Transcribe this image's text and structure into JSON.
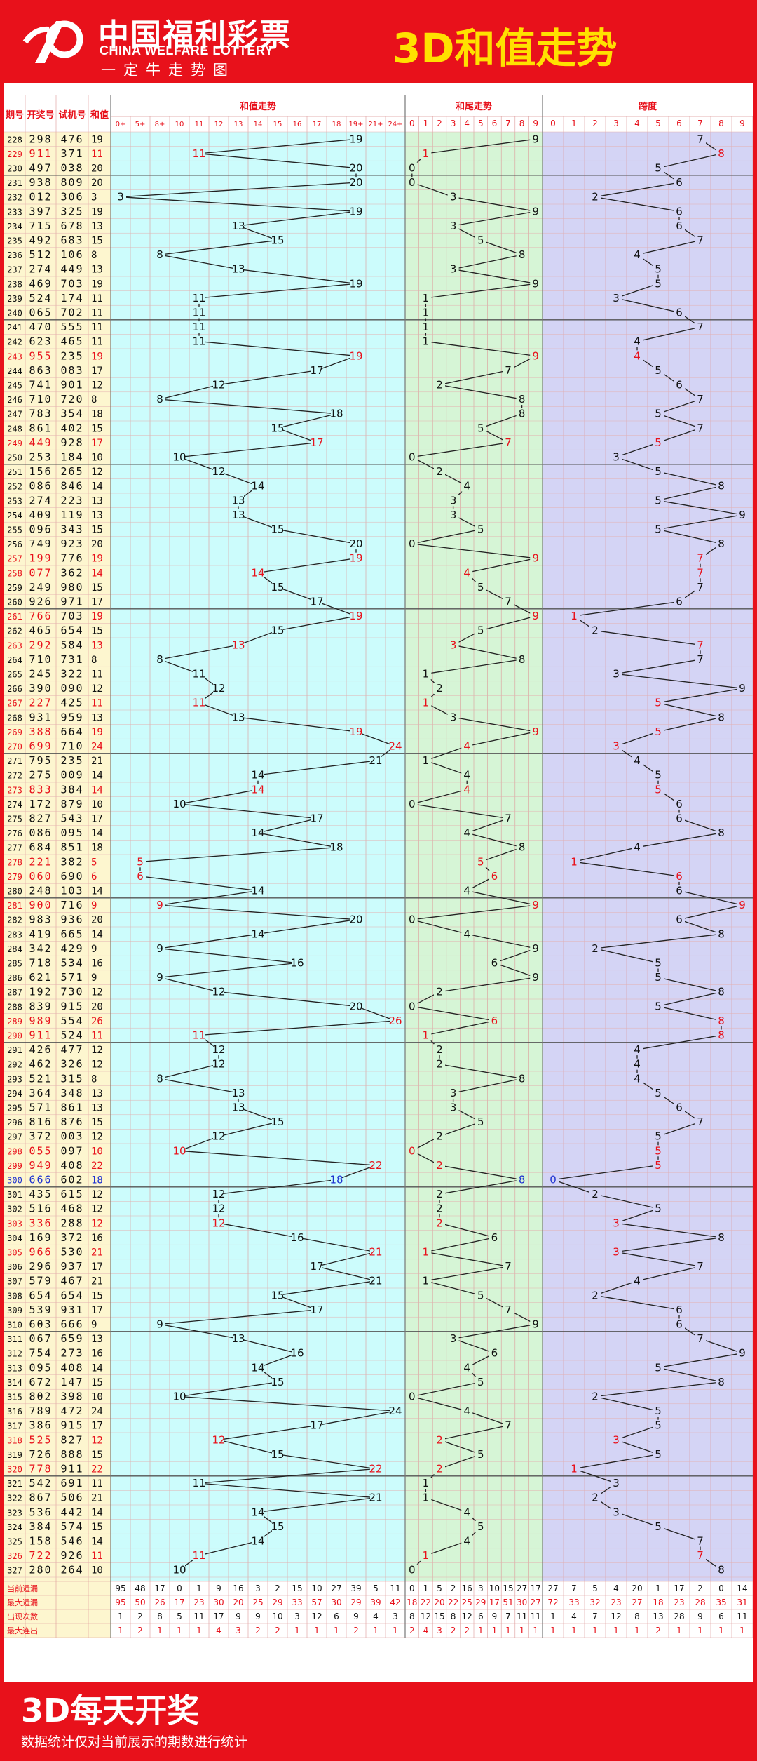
{
  "header": {
    "logo_cn": "中国福利彩票",
    "logo_en": "CHINA WELFARE LOTTERY",
    "logo_sub": "一定牛走势图",
    "title": "3D和值走势"
  },
  "footer": {
    "title": "3D每天开奖",
    "note": "数据统计仅对当前展示的期数进行统计"
  },
  "colors": {
    "red": "#e8111b",
    "yellow": "#ffe100",
    "cyan_bg": "#ccfcfc",
    "green_bg": "#d6f5d6",
    "lavender_bg": "#d4d4f5",
    "sidebar_bg": "#fdf6cf",
    "highlight_blue": "#1e32d0"
  },
  "chart_data": {
    "type": "table",
    "sections": [
      {
        "name": "和值走势",
        "columns": [
          "0+",
          "5+",
          "8+",
          "10",
          "11",
          "12",
          "13",
          "14",
          "15",
          "16",
          "17",
          "18",
          "19+",
          "21+",
          "24+"
        ]
      },
      {
        "name": "和尾走势",
        "columns": [
          "0",
          "1",
          "2",
          "3",
          "4",
          "5",
          "6",
          "7",
          "8",
          "9"
        ]
      },
      {
        "name": "跨度",
        "columns": [
          "0",
          "1",
          "2",
          "3",
          "4",
          "5",
          "6",
          "7",
          "8",
          "9"
        ]
      }
    ],
    "left_headers": [
      "期号",
      "开奖号",
      "试机号",
      "和值"
    ],
    "periods": [
      "228",
      "229",
      "230",
      "231",
      "232",
      "233",
      "234",
      "235",
      "236",
      "237",
      "238",
      "239",
      "240",
      "241",
      "242",
      "243",
      "244",
      "245",
      "246",
      "247",
      "248",
      "249",
      "250",
      "251",
      "252",
      "253",
      "254",
      "255",
      "256",
      "257",
      "258",
      "259",
      "260",
      "261",
      "262",
      "263",
      "264",
      "265",
      "266",
      "267",
      "268",
      "269",
      "270",
      "271",
      "272",
      "273",
      "274",
      "275",
      "276",
      "277",
      "278",
      "279",
      "280",
      "281",
      "282",
      "283",
      "284",
      "285",
      "286",
      "287",
      "288",
      "289",
      "290",
      "291",
      "292",
      "293",
      "294",
      "295",
      "296",
      "297",
      "298",
      "299",
      "300",
      "301",
      "302",
      "303",
      "304",
      "305",
      "306",
      "307",
      "308",
      "309",
      "310",
      "311",
      "312",
      "313",
      "314",
      "315",
      "316",
      "317",
      "318",
      "319",
      "320",
      "321",
      "322",
      "323",
      "324",
      "325",
      "326",
      "327"
    ],
    "draws": [
      "298",
      "911",
      "497",
      "938",
      "012",
      "397",
      "715",
      "492",
      "512",
      "274",
      "469",
      "524",
      "065",
      "470",
      "623",
      "955",
      "863",
      "741",
      "710",
      "783",
      "861",
      "449",
      "253",
      "156",
      "086",
      "274",
      "409",
      "096",
      "749",
      "199",
      "077",
      "249",
      "926",
      "766",
      "465",
      "292",
      "710",
      "245",
      "390",
      "227",
      "931",
      "388",
      "699",
      "795",
      "275",
      "833",
      "172",
      "827",
      "086",
      "684",
      "221",
      "060",
      "248",
      "900",
      "983",
      "419",
      "342",
      "718",
      "621",
      "192",
      "839",
      "989",
      "911",
      "426",
      "462",
      "521",
      "364",
      "571",
      "816",
      "372",
      "055",
      "949",
      "666",
      "435",
      "516",
      "336",
      "169",
      "966",
      "296",
      "579",
      "654",
      "539",
      "603",
      "067",
      "754",
      "095",
      "672",
      "802",
      "789",
      "386",
      "525",
      "726",
      "778",
      "542",
      "867",
      "536",
      "384",
      "158",
      "722",
      "280"
    ],
    "trials": [
      "476",
      "371",
      "038",
      "809",
      "306",
      "325",
      "678",
      "683",
      "106",
      "449",
      "703",
      "174",
      "702",
      "555",
      "465",
      "235",
      "083",
      "901",
      "720",
      "354",
      "402",
      "928",
      "184",
      "265",
      "846",
      "223",
      "119",
      "343",
      "923",
      "776",
      "362",
      "980",
      "971",
      "703",
      "654",
      "584",
      "731",
      "322",
      "090",
      "425",
      "959",
      "664",
      "710",
      "235",
      "009",
      "384",
      "879",
      "543",
      "095",
      "851",
      "382",
      "690",
      "103",
      "716",
      "936",
      "665",
      "429",
      "534",
      "571",
      "730",
      "915",
      "554",
      "524",
      "477",
      "326",
      "315",
      "348",
      "861",
      "876",
      "003",
      "097",
      "408",
      "602",
      "615",
      "468",
      "288",
      "372",
      "530",
      "937",
      "467",
      "654",
      "931",
      "666",
      "659",
      "273",
      "408",
      "147",
      "398",
      "472",
      "915",
      "827",
      "888",
      "911",
      "691",
      "506",
      "442",
      "574",
      "546",
      "926",
      "264"
    ],
    "sums": [
      19,
      11,
      20,
      20,
      3,
      19,
      13,
      15,
      8,
      13,
      19,
      11,
      11,
      11,
      11,
      19,
      17,
      12,
      8,
      18,
      15,
      17,
      10,
      12,
      14,
      13,
      13,
      15,
      20,
      19,
      14,
      15,
      17,
      19,
      15,
      13,
      8,
      11,
      12,
      11,
      13,
      19,
      24,
      21,
      14,
      14,
      10,
      17,
      14,
      18,
      5,
      6,
      14,
      9,
      20,
      14,
      9,
      16,
      9,
      12,
      20,
      26,
      11,
      12,
      12,
      8,
      13,
      13,
      15,
      12,
      10,
      22,
      18,
      12,
      12,
      12,
      16,
      21,
      17,
      21,
      15,
      17,
      9,
      13,
      16,
      14,
      15,
      10,
      24,
      17,
      12,
      15,
      22,
      11,
      21,
      14,
      15,
      14,
      11,
      10
    ],
    "tails": [
      9,
      1,
      0,
      0,
      3,
      9,
      3,
      5,
      8,
      3,
      9,
      1,
      1,
      1,
      1,
      9,
      7,
      2,
      8,
      8,
      5,
      7,
      0,
      2,
      4,
      3,
      3,
      5,
      0,
      9,
      4,
      5,
      7,
      9,
      5,
      3,
      8,
      1,
      2,
      1,
      3,
      9,
      4,
      1,
      4,
      4,
      0,
      7,
      4,
      8,
      5,
      6,
      4,
      9,
      0,
      4,
      9,
      6,
      9,
      2,
      0,
      6,
      1,
      2,
      2,
      8,
      3,
      3,
      5,
      2,
      0,
      2,
      8,
      2,
      2,
      2,
      6,
      1,
      7,
      1,
      5,
      7,
      9,
      3,
      6,
      4,
      5,
      0,
      4,
      7,
      2,
      5,
      2,
      1,
      1,
      4,
      5,
      4,
      1,
      0
    ],
    "spans": [
      7,
      8,
      5,
      6,
      2,
      6,
      6,
      7,
      4,
      5,
      5,
      3,
      6,
      7,
      4,
      4,
      5,
      6,
      7,
      5,
      7,
      5,
      3,
      5,
      8,
      5,
      9,
      5,
      8,
      7,
      7,
      7,
      6,
      1,
      2,
      7,
      7,
      3,
      9,
      5,
      8,
      5,
      3,
      4,
      5,
      5,
      6,
      6,
      8,
      4,
      1,
      6,
      6,
      9,
      6,
      8,
      2,
      5,
      5,
      8,
      5,
      8,
      8,
      4,
      4,
      4,
      5,
      6,
      7,
      5,
      5,
      5,
      0,
      2,
      5,
      3,
      8,
      3,
      7,
      4,
      2,
      6,
      6,
      7,
      9,
      5,
      8,
      2,
      5,
      5,
      3,
      5,
      1,
      3,
      2,
      3,
      5,
      7,
      7,
      8
    ],
    "red_rows": [
      "229",
      "243",
      "249",
      "257",
      "258",
      "261",
      "263",
      "267",
      "269",
      "270",
      "273",
      "278",
      "279",
      "281",
      "289",
      "290",
      "298",
      "299",
      "303",
      "305",
      "318",
      "320",
      "326"
    ],
    "blue_rows": [
      "300"
    ],
    "stats": {
      "labels": [
        "当前遗漏",
        "最大遗漏",
        "出现次数",
        "最大连出"
      ],
      "rows": [
        [
          [
            95,
            48,
            17,
            0,
            1,
            9,
            16,
            3,
            2,
            15,
            10,
            27,
            39,
            5,
            11
          ],
          [
            0,
            1,
            5,
            2,
            16,
            3,
            10,
            15,
            27,
            17
          ],
          [
            27,
            7,
            5,
            4,
            20,
            1,
            17,
            2,
            0,
            14
          ]
        ],
        [
          [
            95,
            50,
            26,
            17,
            23,
            30,
            20,
            25,
            29,
            33,
            57,
            30,
            29,
            39,
            42
          ],
          [
            18,
            22,
            20,
            22,
            25,
            29,
            17,
            51,
            30,
            27
          ],
          [
            72,
            33,
            32,
            23,
            27,
            18,
            23,
            28,
            35,
            31
          ]
        ],
        [
          [
            1,
            2,
            8,
            5,
            11,
            17,
            9,
            9,
            10,
            3,
            12,
            6,
            9,
            4,
            3
          ],
          [
            8,
            12,
            15,
            8,
            12,
            6,
            9,
            7,
            11,
            11
          ],
          [
            1,
            4,
            7,
            12,
            8,
            13,
            28,
            9,
            6,
            11
          ]
        ],
        [
          [
            1,
            2,
            1,
            1,
            1,
            4,
            3,
            2,
            2,
            1,
            1,
            1,
            2,
            1,
            1
          ],
          [
            2,
            4,
            3,
            2,
            2,
            1,
            1,
            1,
            1,
            1
          ],
          [
            1,
            1,
            1,
            1,
            1,
            2,
            1,
            1,
            1,
            1
          ]
        ]
      ]
    }
  }
}
